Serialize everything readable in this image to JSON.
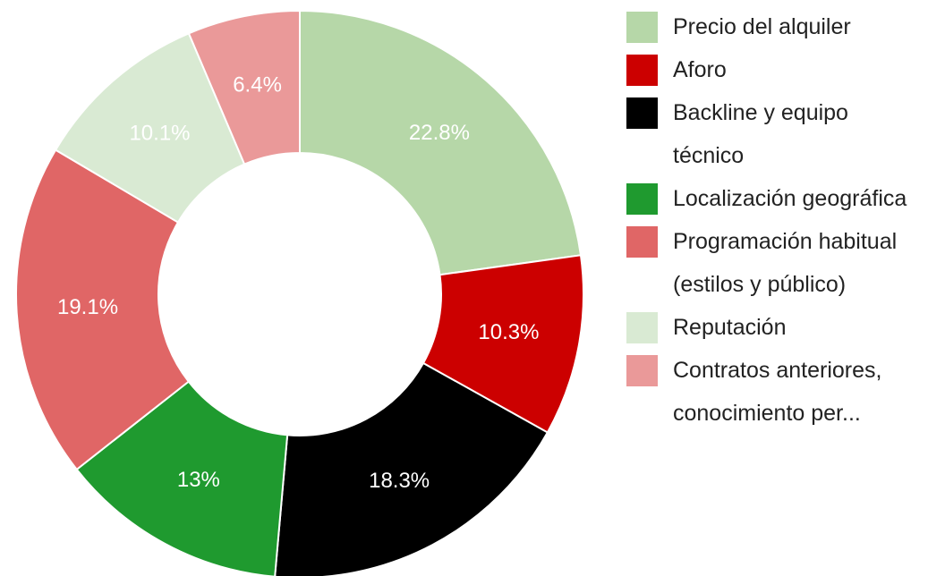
{
  "chart_data": {
    "type": "donut",
    "categories": [
      "Precio del alquiler",
      "Aforo",
      "Backline y equipo técnico",
      "Localización geográfica",
      "Programación habitual (estilos y público)",
      "Reputación",
      "Contratos anteriores, conocimiento per..."
    ],
    "values": [
      22.8,
      10.3,
      18.3,
      13,
      19.1,
      10.1,
      6.4
    ],
    "value_labels": [
      "22.8%",
      "10.3%",
      "18.3%",
      "13%",
      "19.1%",
      "10.1%",
      "6.4%"
    ],
    "colors": [
      "#b6d7a8",
      "#cc0000",
      "#000000",
      "#1f9a2f",
      "#e06666",
      "#d9ead3",
      "#ea9999"
    ],
    "legend": "right"
  }
}
